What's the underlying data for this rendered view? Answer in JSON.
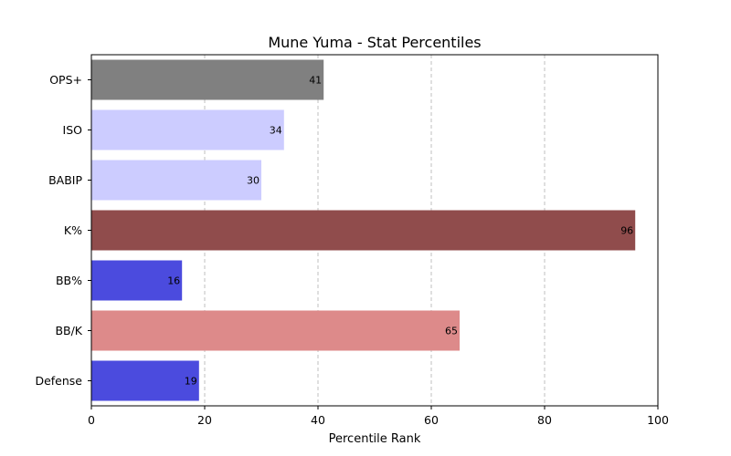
{
  "chart_data": {
    "type": "bar",
    "orientation": "horizontal",
    "title": "Mune Yuma - Stat Percentiles",
    "xlabel": "Percentile Rank",
    "ylabel": "",
    "xlim": [
      0,
      100
    ],
    "xticks": [
      0,
      20,
      40,
      60,
      80,
      100
    ],
    "grid": "vertical dashed",
    "categories": [
      "OPS+",
      "ISO",
      "BABIP",
      "K%",
      "BB%",
      "BB/K",
      "Defense"
    ],
    "values": [
      41,
      34,
      30,
      96,
      16,
      65,
      19
    ],
    "colors": [
      "#808080",
      "#ccccff",
      "#ccccff",
      "#904c4c",
      "#4b4bde",
      "#dd8a8a",
      "#4b4bde"
    ]
  }
}
